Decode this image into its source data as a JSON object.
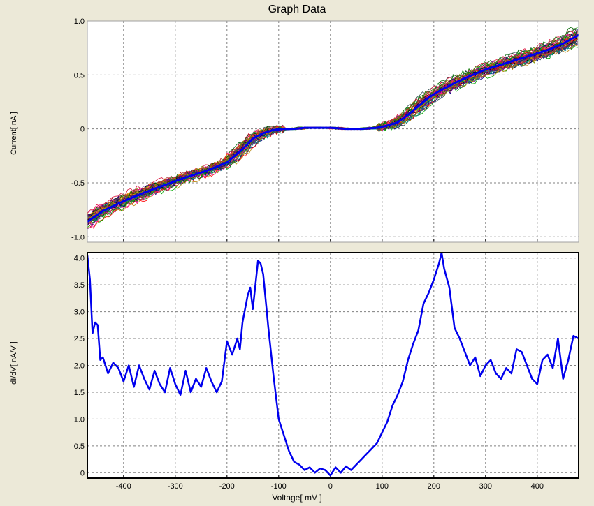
{
  "window_title": "Graph Data",
  "colors": {
    "background": "#ece9d8",
    "plot_bg": "#ffffff",
    "grid": "#808080",
    "mean_line": "#0000ee"
  },
  "chart_data": [
    {
      "type": "line",
      "title": "Graph Data",
      "ylabel": "Current[ nA ]",
      "xlabel": "",
      "xlim": [
        -470,
        480
      ],
      "ylim": [
        -1.05,
        1.0
      ],
      "xticks": [
        -400,
        -300,
        -200,
        -100,
        0,
        100,
        200,
        300,
        400
      ],
      "yticks": [
        -1.0,
        -0.5,
        0,
        0.5,
        1.0
      ],
      "ytick_labels": [
        "-1.0",
        "-0.5",
        "0",
        "0.5",
        "1.0"
      ],
      "grid": true,
      "note_traces": "dozens of noisy multicolored I-V sweeps overlaid, plus a thick blue average curve",
      "series": [
        {
          "color": "#0000ee",
          "x": [
            -470,
            -440,
            -400,
            -360,
            -320,
            -280,
            -240,
            -200,
            -170,
            -150,
            -130,
            -110,
            -90,
            -70,
            -50,
            -20,
            0,
            30,
            60,
            90,
            110,
            130,
            150,
            170,
            190,
            210,
            230,
            260,
            300,
            340,
            380,
            420,
            450,
            480
          ],
          "y": [
            -0.86,
            -0.76,
            -0.67,
            -0.59,
            -0.52,
            -0.45,
            -0.39,
            -0.31,
            -0.19,
            -0.09,
            -0.04,
            -0.01,
            0.0,
            0.0,
            0.01,
            0.01,
            0.01,
            0.0,
            0.0,
            0.01,
            0.03,
            0.06,
            0.13,
            0.21,
            0.29,
            0.35,
            0.4,
            0.47,
            0.55,
            0.61,
            0.67,
            0.73,
            0.79,
            0.87
          ]
        }
      ]
    },
    {
      "type": "line",
      "title": "",
      "ylabel": "dI/dV[ nA/V ]",
      "xlabel": "Voltage[ mV ]",
      "xlim": [
        -470,
        480
      ],
      "ylim": [
        -0.1,
        4.1
      ],
      "xticks": [
        -400,
        -300,
        -200,
        -100,
        0,
        100,
        200,
        300,
        400
      ],
      "xtick_labels": [
        "-400",
        "-300",
        "-200",
        "-100",
        "0",
        "100",
        "200",
        "300",
        "400"
      ],
      "yticks": [
        0,
        0.5,
        1.0,
        1.5,
        2.0,
        2.5,
        3.0,
        3.5,
        4.0
      ],
      "ytick_labels": [
        "0",
        "0.5",
        "1.0",
        "1.5",
        "2.0",
        "2.5",
        "3.0",
        "3.5",
        "4.0"
      ],
      "grid": true,
      "series": [
        {
          "color": "#0000ee",
          "x": [
            -470,
            -465,
            -460,
            -455,
            -450,
            -445,
            -440,
            -430,
            -420,
            -410,
            -400,
            -390,
            -380,
            -370,
            -360,
            -350,
            -340,
            -330,
            -320,
            -310,
            -300,
            -290,
            -280,
            -270,
            -260,
            -250,
            -240,
            -230,
            -220,
            -210,
            -200,
            -190,
            -180,
            -175,
            -170,
            -160,
            -155,
            -150,
            -140,
            -135,
            -130,
            -120,
            -110,
            -100,
            -90,
            -80,
            -70,
            -60,
            -50,
            -40,
            -30,
            -20,
            -10,
            0,
            10,
            20,
            30,
            40,
            50,
            60,
            70,
            80,
            90,
            100,
            110,
            120,
            130,
            140,
            150,
            160,
            170,
            180,
            190,
            200,
            210,
            215,
            220,
            230,
            240,
            250,
            260,
            270,
            280,
            290,
            300,
            310,
            320,
            330,
            340,
            350,
            360,
            370,
            380,
            390,
            400,
            410,
            420,
            430,
            440,
            450,
            460,
            470,
            480
          ],
          "y": [
            4.05,
            3.6,
            2.6,
            2.8,
            2.75,
            2.1,
            2.15,
            1.85,
            2.05,
            1.95,
            1.7,
            2.0,
            1.6,
            2.0,
            1.75,
            1.55,
            1.9,
            1.65,
            1.5,
            1.95,
            1.65,
            1.45,
            1.9,
            1.5,
            1.75,
            1.6,
            1.95,
            1.7,
            1.5,
            1.7,
            2.45,
            2.2,
            2.5,
            2.3,
            2.8,
            3.3,
            3.45,
            3.05,
            3.95,
            3.9,
            3.7,
            2.7,
            1.8,
            1.0,
            0.7,
            0.4,
            0.2,
            0.15,
            0.05,
            0.1,
            0.0,
            0.08,
            0.05,
            -0.05,
            0.1,
            0.0,
            0.12,
            0.05,
            0.15,
            0.25,
            0.35,
            0.45,
            0.55,
            0.75,
            0.95,
            1.25,
            1.45,
            1.7,
            2.1,
            2.4,
            2.65,
            3.15,
            3.35,
            3.6,
            3.9,
            4.1,
            3.8,
            3.45,
            2.7,
            2.5,
            2.25,
            2.0,
            2.15,
            1.8,
            2.0,
            2.1,
            1.85,
            1.75,
            1.95,
            1.85,
            2.3,
            2.25,
            2.0,
            1.75,
            1.65,
            2.1,
            2.2,
            1.95,
            2.5,
            1.75,
            2.1,
            2.55,
            2.5
          ]
        }
      ]
    }
  ]
}
